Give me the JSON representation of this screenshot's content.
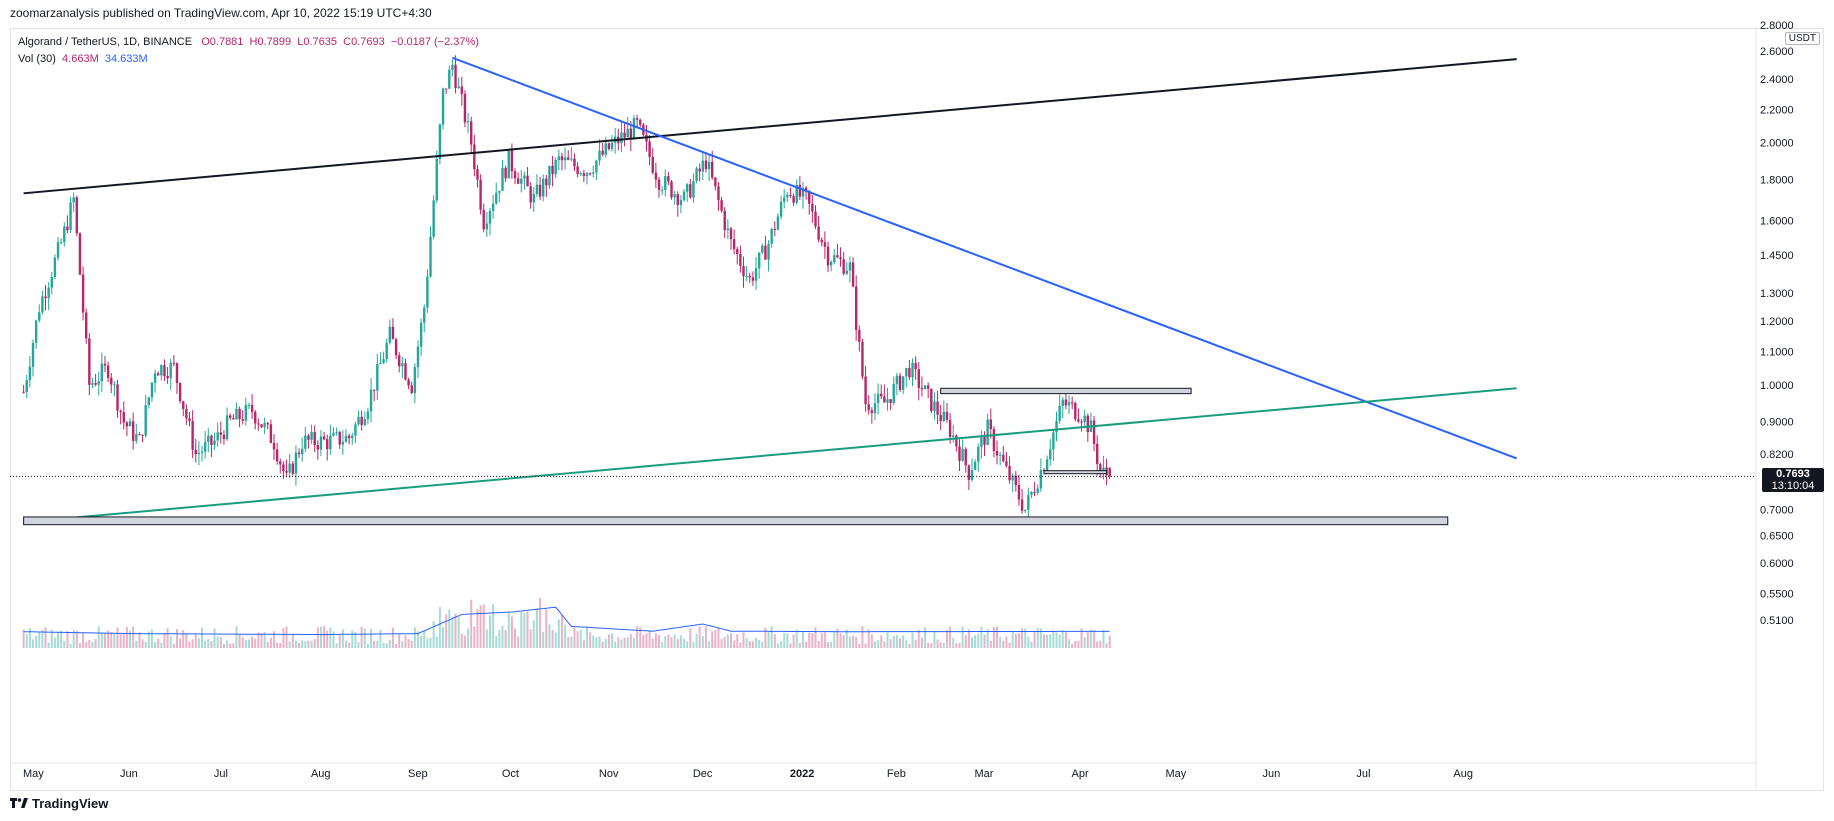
{
  "header": {
    "published_by": "zoomarzanalysis published on TradingView.com, Apr 10, 2022 15:19 UTC+4:30"
  },
  "legend": {
    "symbol": "Algorand / TetherUS, 1D, BINANCE",
    "open": "O0.7881",
    "high": "H0.7899",
    "low": "L0.7635",
    "close": "C0.7693",
    "change": "−0.0187 (−2.37%)",
    "vol_label": "Vol (30)",
    "vol_value": "4.663M",
    "vol_ma": "34.633M"
  },
  "axis": {
    "currency": "USDT",
    "last_price": "0.7693",
    "countdown": "13:10:04"
  },
  "footer": {
    "brand": "TradingView"
  },
  "colors": {
    "up": "#26a69a",
    "down": "#b5266a",
    "trend_black": "#131722",
    "trend_blue": "#2962ff",
    "trend_green": "#1a9c82",
    "volume_ma": "#2962ff",
    "zone_fill": "#d1d4dc"
  },
  "chart_data": {
    "type": "candlestick",
    "scale": "log",
    "y_ticks": [
      2.8,
      2.6,
      2.4,
      2.2,
      2.0,
      1.8,
      1.6,
      1.45,
      1.3,
      1.2,
      1.1,
      1.0,
      0.9,
      0.82,
      0.7693,
      0.7,
      0.65,
      0.6,
      0.55,
      0.51
    ],
    "y_tick_labels": [
      "2.8000",
      "2.6000",
      "2.4000",
      "2.2000",
      "2.0000",
      "1.8000",
      "1.6000",
      "1.4500",
      "1.3000",
      "1.2000",
      "1.1000",
      "1.0000",
      "0.9000",
      "0.8200",
      "0.7693",
      "0.7000",
      "0.6500",
      "0.6000",
      "0.5500",
      "0.5100"
    ],
    "x_labels": [
      "May",
      "Jun",
      "Jul",
      "Aug",
      "Sep",
      "Oct",
      "Nov",
      "Dec",
      "2022",
      "Feb",
      "Mar",
      "Apr",
      "May",
      "Jun",
      "Jul",
      "Aug"
    ],
    "x_dates": [
      "2021-05-01",
      "2021-06-01",
      "2021-07-01",
      "2021-08-01",
      "2021-09-01",
      "2021-10-01",
      "2021-11-01",
      "2021-12-01",
      "2022-01-01",
      "2022-02-01",
      "2022-03-01",
      "2022-04-01",
      "2022-05-01",
      "2022-06-01",
      "2022-07-01",
      "2022-08-01"
    ],
    "price_anchors": [
      [
        "2021-04-28",
        0.98
      ],
      [
        "2021-05-03",
        1.25
      ],
      [
        "2021-05-10",
        1.5
      ],
      [
        "2021-05-14",
        1.7
      ],
      [
        "2021-05-19",
        1.0
      ],
      [
        "2021-05-25",
        1.05
      ],
      [
        "2021-05-30",
        0.9
      ],
      [
        "2021-06-04",
        0.85
      ],
      [
        "2021-06-09",
        1.05
      ],
      [
        "2021-06-15",
        1.05
      ],
      [
        "2021-06-22",
        0.82
      ],
      [
        "2021-06-28",
        0.85
      ],
      [
        "2021-07-03",
        0.9
      ],
      [
        "2021-07-10",
        0.93
      ],
      [
        "2021-07-17",
        0.85
      ],
      [
        "2021-07-21",
        0.76
      ],
      [
        "2021-07-26",
        0.85
      ],
      [
        "2021-08-03",
        0.85
      ],
      [
        "2021-08-10",
        0.86
      ],
      [
        "2021-08-16",
        0.95
      ],
      [
        "2021-08-23",
        1.15
      ],
      [
        "2021-08-30",
        1.0
      ],
      [
        "2021-09-03",
        1.25
      ],
      [
        "2021-09-09",
        2.3
      ],
      [
        "2021-09-12",
        2.5
      ],
      [
        "2021-09-18",
        2.0
      ],
      [
        "2021-09-22",
        1.6
      ],
      [
        "2021-09-30",
        1.9
      ],
      [
        "2021-10-08",
        1.7
      ],
      [
        "2021-10-16",
        1.9
      ],
      [
        "2021-10-25",
        1.85
      ],
      [
        "2021-11-03",
        2.0
      ],
      [
        "2021-11-10",
        2.1
      ],
      [
        "2021-11-17",
        1.8
      ],
      [
        "2021-11-25",
        1.7
      ],
      [
        "2021-12-02",
        1.9
      ],
      [
        "2021-12-10",
        1.5
      ],
      [
        "2021-12-16",
        1.35
      ],
      [
        "2021-12-22",
        1.5
      ],
      [
        "2021-12-28",
        1.75
      ],
      [
        "2022-01-03",
        1.7
      ],
      [
        "2022-01-10",
        1.45
      ],
      [
        "2022-01-17",
        1.4
      ],
      [
        "2022-01-22",
        0.95
      ],
      [
        "2022-01-28",
        0.95
      ],
      [
        "2022-02-05",
        1.05
      ],
      [
        "2022-02-12",
        0.95
      ],
      [
        "2022-02-18",
        0.88
      ],
      [
        "2022-02-24",
        0.78
      ],
      [
        "2022-03-02",
        0.88
      ],
      [
        "2022-03-08",
        0.78
      ],
      [
        "2022-03-14",
        0.7
      ],
      [
        "2022-03-20",
        0.8
      ],
      [
        "2022-03-26",
        0.95
      ],
      [
        "2022-04-01",
        0.92
      ],
      [
        "2022-04-04",
        0.88
      ],
      [
        "2022-04-07",
        0.78
      ],
      [
        "2022-04-10",
        0.7693
      ]
    ],
    "volume_ma_anchors": [
      [
        "2021-04-28",
        34
      ],
      [
        "2021-06-01",
        30
      ],
      [
        "2021-08-01",
        28
      ],
      [
        "2021-09-01",
        30
      ],
      [
        "2021-09-15",
        70
      ],
      [
        "2021-10-01",
        75
      ],
      [
        "2021-10-15",
        85
      ],
      [
        "2021-10-20",
        45
      ],
      [
        "2021-11-15",
        35
      ],
      [
        "2021-12-01",
        50
      ],
      [
        "2021-12-10",
        35
      ],
      [
        "2022-01-15",
        34
      ],
      [
        "2022-04-10",
        34.6
      ]
    ],
    "trend_lines": [
      {
        "name": "black",
        "from": [
          "2021-04-28",
          1.73
        ],
        "to": [
          "2022-08-18",
          2.54
        ]
      },
      {
        "name": "blue",
        "from": [
          "2021-09-12",
          2.55
        ],
        "to": [
          "2022-08-18",
          0.81
        ]
      },
      {
        "name": "green",
        "from": [
          "2021-04-28",
          0.675
        ],
        "to": [
          "2022-08-18",
          0.99
        ]
      }
    ],
    "zones": [
      {
        "from": [
          "2021-04-28",
          0.685
        ],
        "to": [
          "2022-07-27",
          0.67
        ]
      },
      {
        "from": [
          "2022-02-15",
          0.99
        ],
        "to": [
          "2022-05-06",
          0.975
        ]
      },
      {
        "from": [
          "2022-03-20",
          0.782
        ],
        "to": [
          "2022-04-09",
          0.78
        ]
      }
    ]
  }
}
